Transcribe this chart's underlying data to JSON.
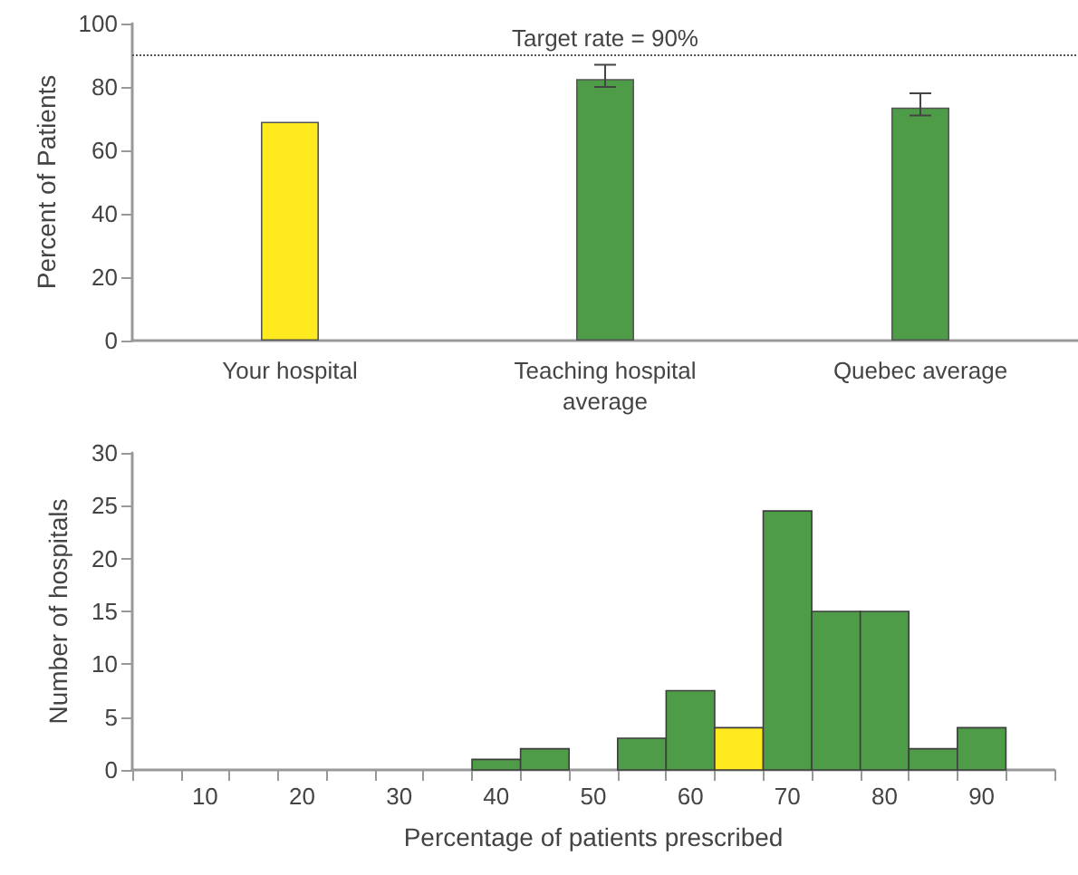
{
  "chart_data": [
    {
      "type": "bar",
      "ylabel": "Percent of Patients",
      "categories": [
        "Your hospital",
        "Teaching hospital\naverage",
        "Quebec average"
      ],
      "values": [
        69,
        82.5,
        73.5
      ],
      "colors": [
        "#ffea1f",
        "#4f9c48",
        "#4f9c48"
      ],
      "errors": [
        null,
        [
          80,
          87
        ],
        [
          71,
          78
        ]
      ],
      "ylim": [
        0,
        100
      ],
      "yticks": [
        0,
        20,
        40,
        60,
        80,
        100
      ],
      "ref_lines": [
        {
          "axis": "y",
          "value": 90,
          "label": "Target rate = 90%",
          "line_style": "dotted",
          "color": "#555555"
        }
      ]
    },
    {
      "type": "histogram",
      "xlabel": "Percentage of patients prescribed",
      "ylabel": "Number of hospitals",
      "bins": [
        37.5,
        42.5,
        47.5,
        52.5,
        57.5,
        62.5,
        67.5,
        72.5,
        77.5,
        82.5,
        87.5,
        92.5
      ],
      "values": [
        1,
        2,
        0,
        3,
        7.5,
        4,
        24.5,
        15,
        15,
        2,
        4
      ],
      "colors": [
        "#4f9c48",
        "#4f9c48",
        "#4f9c48",
        "#4f9c48",
        "#4f9c48",
        "#ffea1f",
        "#4f9c48",
        "#4f9c48",
        "#4f9c48",
        "#4f9c48",
        "#4f9c48"
      ],
      "xlim": [
        2.5,
        97.5
      ],
      "xticks": [
        {
          "value": 2.5,
          "label": null
        },
        {
          "value": 7.5,
          "label": null
        },
        10,
        {
          "value": 12.5,
          "label": null
        },
        {
          "value": 17.5,
          "label": null
        },
        20,
        {
          "value": 22.5,
          "label": null
        },
        {
          "value": 27.5,
          "label": null
        },
        30,
        {
          "value": 32.5,
          "label": null
        },
        {
          "value": 37.5,
          "label": null
        },
        40,
        {
          "value": 42.5,
          "label": null
        },
        {
          "value": 47.5,
          "label": null
        },
        50,
        {
          "value": 52.5,
          "label": null
        },
        {
          "value": 57.5,
          "label": null
        },
        60,
        {
          "value": 62.5,
          "label": null
        },
        {
          "value": 67.5,
          "label": null
        },
        70,
        {
          "value": 72.5,
          "label": null
        },
        {
          "value": 77.5,
          "label": null
        },
        80,
        {
          "value": 82.5,
          "label": null
        },
        {
          "value": 87.5,
          "label": null
        },
        90,
        {
          "value": 92.5,
          "label": null
        },
        {
          "value": 97.5,
          "label": null
        }
      ],
      "ylim": [
        0,
        30
      ],
      "yticks": [
        0,
        5,
        10,
        15,
        20,
        25,
        30
      ]
    }
  ]
}
